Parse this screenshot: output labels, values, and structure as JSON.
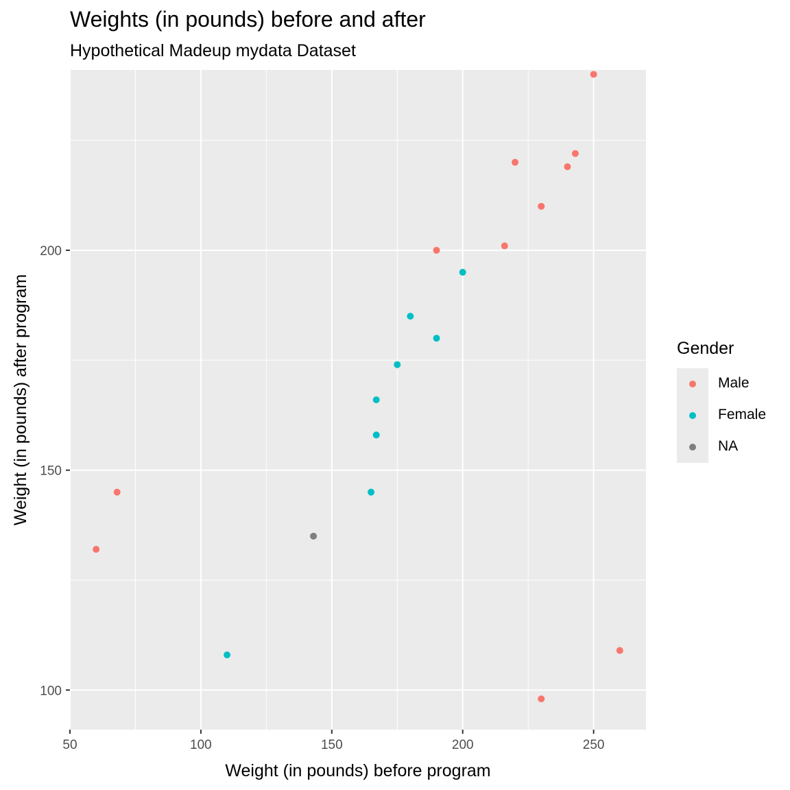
{
  "title": "Weights (in pounds) before and after",
  "subtitle": "Hypothetical Madeup mydata Dataset",
  "chart_data": {
    "type": "scatter",
    "title": "Weights (in pounds) before and after",
    "subtitle": "Hypothetical Madeup mydata Dataset",
    "xlabel": "Weight (in pounds) before program",
    "ylabel": "Weight (in pounds) after program",
    "xlim": [
      50,
      270
    ],
    "ylim": [
      91,
      241
    ],
    "x_ticks": [
      50,
      100,
      150,
      200,
      250
    ],
    "y_ticks": [
      100,
      150,
      200
    ],
    "grid": true,
    "legend_position": "right",
    "legend_title": "Gender",
    "series": [
      {
        "name": "Male",
        "color": "#F8766D",
        "points": [
          {
            "x": 60,
            "y": 132
          },
          {
            "x": 68,
            "y": 145
          },
          {
            "x": 190,
            "y": 200
          },
          {
            "x": 216,
            "y": 201
          },
          {
            "x": 220,
            "y": 220
          },
          {
            "x": 230,
            "y": 210
          },
          {
            "x": 230,
            "y": 98
          },
          {
            "x": 240,
            "y": 219
          },
          {
            "x": 243,
            "y": 222
          },
          {
            "x": 250,
            "y": 240
          },
          {
            "x": 260,
            "y": 109
          }
        ]
      },
      {
        "name": "Female",
        "color": "#00BFC4",
        "points": [
          {
            "x": 110,
            "y": 108
          },
          {
            "x": 165,
            "y": 145
          },
          {
            "x": 167,
            "y": 158
          },
          {
            "x": 167,
            "y": 166
          },
          {
            "x": 175,
            "y": 174
          },
          {
            "x": 180,
            "y": 185
          },
          {
            "x": 190,
            "y": 180
          },
          {
            "x": 200,
            "y": 195
          }
        ]
      },
      {
        "name": "NA",
        "color": "#7F7F7F",
        "points": [
          {
            "x": 143,
            "y": 135
          }
        ]
      }
    ]
  }
}
